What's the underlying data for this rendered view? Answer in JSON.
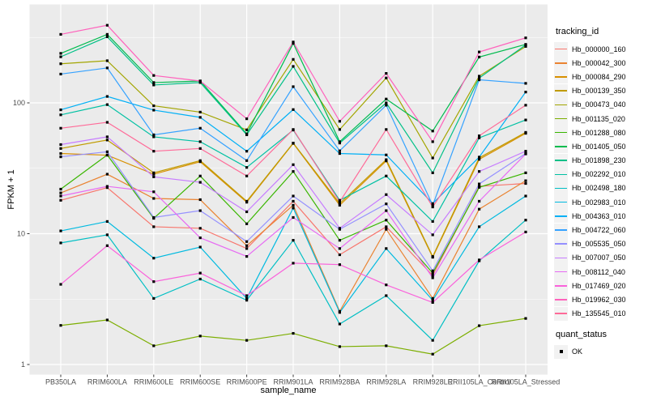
{
  "figure": {
    "y_axis": {
      "title": "FPKM + 1",
      "tick_labels": [
        "100",
        "10",
        "1"
      ],
      "tick_values": [
        100,
        10,
        1
      ]
    },
    "x_axis": {
      "title": "sample_name"
    },
    "legend": {
      "tracking_title": "tracking_id",
      "quant_title": "quant_status",
      "quant_items": [
        {
          "label": "OK"
        }
      ]
    },
    "colors": {
      "panel_background": "#EBEBEB",
      "gridline": "#FFFFFF",
      "axis_text": "#4D4D4D",
      "axis_title": "#000000",
      "tick_mark": "#333333",
      "legend_key_background": "#F2F2F2",
      "point": "#000000"
    }
  },
  "chart_data": {
    "type": "line",
    "title": "",
    "xlabel": "sample_name",
    "ylabel": "FPKM + 1",
    "y_scale": "log10",
    "y_breaks": [
      1,
      10,
      100
    ],
    "y_minor_breaks": [
      3.162,
      31.62,
      316.2
    ],
    "ylim": [
      1,
      450
    ],
    "grid": true,
    "legend_position": "right",
    "legend_titles": {
      "color": "tracking_id",
      "shape": "quant_status"
    },
    "quant_status_values": [
      "OK"
    ],
    "categories": [
      "PB350LA",
      "RRIM600LA",
      "RRIM600LE",
      "RRIM600SE",
      "RRIM600PE",
      "RRIM901LA",
      "RRIM928BA",
      "RRIM928LA",
      "RRIM928LE",
      "RRII105LA_Control",
      "RRII105LA_Stressed"
    ],
    "series": [
      {
        "name": "Hb_000000_160",
        "color": "#F8766D",
        "values": [
          18,
          22.5,
          11.3,
          11,
          7.7,
          17.7,
          6.9,
          11.3,
          4.8,
          23,
          24.2
        ]
      },
      {
        "name": "Hb_000042_300",
        "color": "#EA8331",
        "values": [
          20.5,
          28.5,
          18.6,
          18.2,
          8.1,
          16.5,
          2.55,
          10.8,
          3.2,
          15.4,
          25.4
        ]
      },
      {
        "name": "Hb_000084_290",
        "color": "#D89000",
        "values": [
          41,
          39.8,
          28.5,
          35.5,
          17.4,
          49,
          16.5,
          36,
          6.6,
          37,
          58.5
        ]
      },
      {
        "name": "Hb_000139_350",
        "color": "#C09B00",
        "values": [
          44.8,
          52,
          29.2,
          36.2,
          17.7,
          49.3,
          17,
          36.8,
          6.7,
          38,
          59.5
        ]
      },
      {
        "name": "Hb_000473_040",
        "color": "#A3A500",
        "values": [
          199,
          210,
          95,
          85,
          62.2,
          215,
          62.6,
          155,
          37.9,
          160,
          270
        ]
      },
      {
        "name": "Hb_001135_020",
        "color": "#7CAE00",
        "values": [
          1.99,
          2.19,
          1.39,
          1.65,
          1.53,
          1.73,
          1.37,
          1.39,
          1.2,
          1.98,
          2.25
        ]
      },
      {
        "name": "Hb_001288_080",
        "color": "#39B600",
        "values": [
          21.9,
          40,
          13.1,
          27.6,
          11.9,
          29.9,
          8.9,
          12.7,
          5.0,
          22.6,
          29.2
        ]
      },
      {
        "name": "Hb_001405_050",
        "color": "#00BB4E",
        "values": [
          239,
          334,
          143,
          147,
          58,
          285,
          50.5,
          107,
          60.9,
          224,
          280
        ]
      },
      {
        "name": "Hb_001898_230",
        "color": "#00C087",
        "values": [
          225,
          320,
          137,
          143,
          57,
          190,
          49.3,
          100,
          29.2,
          155,
          277
        ]
      },
      {
        "name": "Hb_002292_010",
        "color": "#00C1A3",
        "values": [
          81,
          97,
          55,
          50.5,
          32.1,
          62,
          18,
          27.6,
          12.4,
          54,
          74
        ]
      },
      {
        "name": "Hb_002498_180",
        "color": "#00BFC4",
        "values": [
          8.5,
          9.8,
          3.2,
          4.5,
          3.1,
          8.9,
          2.04,
          3.36,
          1.53,
          6.2,
          12.7
        ]
      },
      {
        "name": "Hb_002983_010",
        "color": "#00BAE0",
        "values": [
          10.5,
          12.4,
          6.5,
          7.9,
          3.2,
          15.7,
          2.5,
          7.7,
          3.1,
          11.3,
          19.4
        ]
      },
      {
        "name": "Hb_004363_010",
        "color": "#00B0F6",
        "values": [
          88.5,
          112,
          88,
          77.5,
          42.7,
          88.9,
          41,
          40,
          17,
          38.5,
          121
        ]
      },
      {
        "name": "Hb_004722_060",
        "color": "#35A2FF",
        "values": [
          166,
          185,
          57,
          64,
          36.2,
          133,
          43,
          96,
          16.5,
          150,
          141
        ]
      },
      {
        "name": "Hb_005535_050",
        "color": "#9590FF",
        "values": [
          38.7,
          42.3,
          13.3,
          15,
          8.7,
          19.4,
          10.8,
          16.9,
          5.2,
          24,
          41
        ]
      },
      {
        "name": "Hb_007007_050",
        "color": "#C77CFF",
        "values": [
          48,
          55,
          27.2,
          24.7,
          14.7,
          33.7,
          11,
          19.9,
          9.8,
          29.9,
          42.7
        ]
      },
      {
        "name": "Hb_008112_040",
        "color": "#E76BF3",
        "values": [
          19.4,
          23,
          20.9,
          9.3,
          6.7,
          13.3,
          7.7,
          15,
          4.6,
          17.7,
          40.7
        ]
      },
      {
        "name": "Hb_017469_020",
        "color": "#FA62DB",
        "values": [
          4.1,
          8.1,
          4.3,
          5.0,
          3.36,
          5.95,
          5.8,
          4.06,
          2.98,
          6.3,
          10.3
        ]
      },
      {
        "name": "Hb_019962_030",
        "color": "#FF62BC",
        "values": [
          334,
          392,
          162,
          147,
          75.6,
          292,
          72.3,
          168,
          50.5,
          245,
          314
        ]
      },
      {
        "name": "Hb_135545_010",
        "color": "#FF6A98",
        "values": [
          64,
          71,
          42.7,
          44.8,
          27.6,
          62.6,
          17.5,
          62.6,
          16,
          56,
          96
        ]
      }
    ]
  }
}
